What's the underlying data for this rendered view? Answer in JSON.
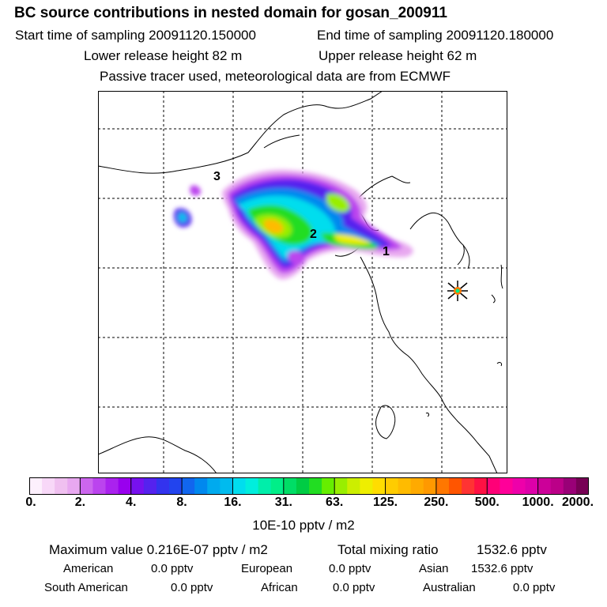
{
  "header": {
    "title": "BC  source contributions in nested domain for gosan_200911",
    "start_label": "Start time of sampling 20091120.150000",
    "end_label": "End time of sampling 20091120.180000",
    "lower_label": "Lower release height   82 m",
    "upper_label": "Upper release height   62 m",
    "note": "Passive tracer used, meteorological data are from ECMWF"
  },
  "map": {
    "source_labels": [
      "1",
      "2",
      "3"
    ],
    "receptor_marker": "gosan-receptor-star"
  },
  "colorbar": {
    "tick_labels": [
      "0.",
      "2.",
      "4.",
      "8.",
      "16.",
      "31.",
      "63.",
      "125.",
      "250.",
      "500.",
      "1000.",
      "2000."
    ],
    "colors": [
      "#fdf0fd",
      "#f8d8f8",
      "#f0c0f0",
      "#e8a8f0",
      "#cc66ee",
      "#bb44ee",
      "#aa22ee",
      "#9900ee",
      "#7711ee",
      "#5522ee",
      "#3333ee",
      "#2244ee",
      "#1166ee",
      "#0088ee",
      "#00aaee",
      "#00bbee",
      "#00ddee",
      "#00eedd",
      "#00eeaa",
      "#00ee88",
      "#00dd66",
      "#00cc44",
      "#22dd22",
      "#66ee00",
      "#99ee00",
      "#ccee00",
      "#eeee00",
      "#ffdd00",
      "#ffcc00",
      "#ffbb00",
      "#ffaa00",
      "#ff9900",
      "#ff7700",
      "#ff5500",
      "#ff3333",
      "#ff1144",
      "#ff0077",
      "#ff0099",
      "#ee00aa",
      "#dd00aa",
      "#cc0099",
      "#bb0088",
      "#990077",
      "#770055"
    ],
    "units": "10E-10 pptv / m2"
  },
  "summary": {
    "max_label": "Maximum value  0.216E-07 pptv / m2",
    "total_label": "Total mixing ratio",
    "total_value": "1532.6 pptv",
    "regions": [
      {
        "name": "American",
        "value": "0.0 pptv"
      },
      {
        "name": "European",
        "value": "0.0 pptv"
      },
      {
        "name": "Asian",
        "value": "1532.6 pptv"
      },
      {
        "name": "South American",
        "value": "0.0 pptv"
      },
      {
        "name": "African",
        "value": "0.0 pptv"
      },
      {
        "name": "Australian",
        "value": "0.0 pptv"
      }
    ]
  }
}
